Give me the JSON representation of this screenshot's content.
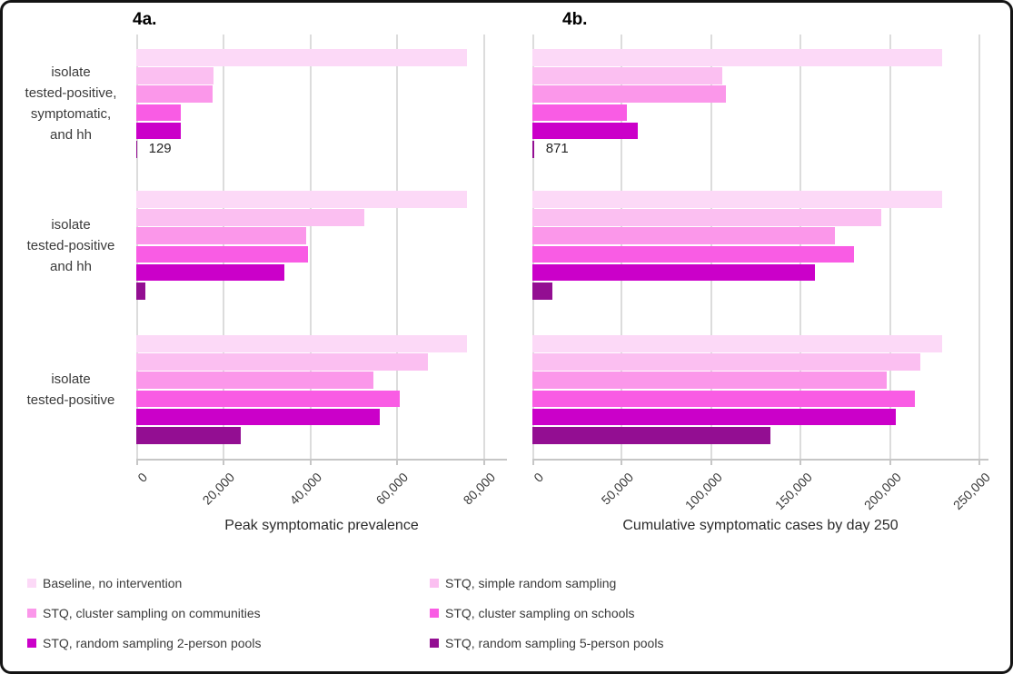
{
  "palette": [
    "#fcd9f7",
    "#fbbff1",
    "#fb97ea",
    "#f95ce4",
    "#cb00c9",
    "#930e92"
  ],
  "legend": {
    "entries": [
      "Baseline, no intervention",
      "STQ, simple random sampling",
      "STQ, cluster sampling on communities",
      "STQ, cluster sampling on schools",
      "STQ, random sampling 2-person pools",
      "STQ, random sampling 5-person pools"
    ]
  },
  "chart_data": [
    {
      "type": "bar",
      "orientation": "horizontal",
      "title": "4a.",
      "xlabel": "Peak symptomatic prevalence",
      "xlim": [
        0,
        80000
      ],
      "xticks": [
        0,
        20000,
        40000,
        60000,
        80000
      ],
      "xtick_labels": [
        "0",
        "20,000",
        "40,000",
        "60,000",
        "80,000"
      ],
      "grid": true,
      "show_category_labels": true,
      "legend_position": "bottom",
      "categories": [
        "isolate tested-positive, symptomatic, and hh",
        "isolate tested-positive and hh",
        "isolate tested-positive"
      ],
      "category_lines": [
        [
          "isolate",
          "tested-positive,",
          "symptomatic,",
          "and hh"
        ],
        [
          "isolate",
          "tested-positive",
          "and hh"
        ],
        [
          "isolate",
          "tested-positive"
        ]
      ],
      "series": [
        {
          "name": "Baseline, no intervention",
          "values": [
            76000,
            76000,
            76000
          ]
        },
        {
          "name": "STQ, simple random sampling",
          "values": [
            17800,
            52500,
            67000
          ]
        },
        {
          "name": "STQ, cluster sampling on communities",
          "values": [
            17500,
            39000,
            54500
          ]
        },
        {
          "name": "STQ, cluster sampling on schools",
          "values": [
            10300,
            39500,
            60500
          ]
        },
        {
          "name": "STQ, random sampling 2-person pools",
          "values": [
            10300,
            34000,
            56000
          ]
        },
        {
          "name": "STQ, random sampling 5-person pools",
          "values": [
            129,
            2000,
            24000
          ]
        }
      ],
      "annotations": [
        {
          "text": "129",
          "category_index": 0,
          "series_index": 5
        }
      ]
    },
    {
      "type": "bar",
      "orientation": "horizontal",
      "title": "4b.",
      "xlabel": "Cumulative symptomatic cases by day 250",
      "xlim": [
        0,
        250000
      ],
      "xticks": [
        0,
        50000,
        100000,
        150000,
        200000,
        250000
      ],
      "xtick_labels": [
        "0",
        "50,000",
        "100,000",
        "150,000",
        "200,000",
        "250,000"
      ],
      "grid": true,
      "show_category_labels": false,
      "legend_position": "bottom",
      "categories": [
        "isolate tested-positive, symptomatic, and hh",
        "isolate tested-positive and hh",
        "isolate tested-positive"
      ],
      "series": [
        {
          "name": "Baseline, no intervention",
          "values": [
            229000,
            229000,
            229000
          ]
        },
        {
          "name": "STQ, simple random sampling",
          "values": [
            106000,
            195000,
            217000
          ]
        },
        {
          "name": "STQ, cluster sampling on communities",
          "values": [
            108000,
            169000,
            198000
          ]
        },
        {
          "name": "STQ, cluster sampling on schools",
          "values": [
            53000,
            180000,
            214000
          ]
        },
        {
          "name": "STQ, random sampling 2-person pools",
          "values": [
            59000,
            158000,
            203000
          ]
        },
        {
          "name": "STQ, random sampling 5-person pools",
          "values": [
            871,
            11000,
            133000
          ]
        }
      ],
      "annotations": [
        {
          "text": "871",
          "category_index": 0,
          "series_index": 5
        }
      ]
    }
  ]
}
